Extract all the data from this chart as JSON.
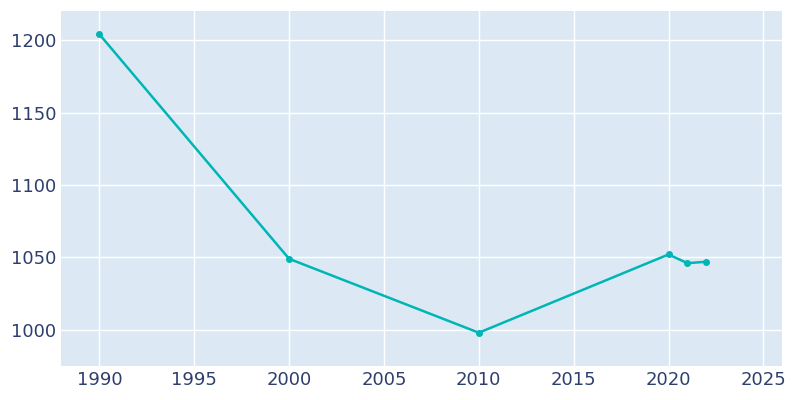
{
  "years": [
    1990,
    2000,
    2010,
    2020,
    2021,
    2022
  ],
  "population": [
    1204,
    1049,
    998,
    1052,
    1046,
    1047
  ],
  "line_color": "#00B5B5",
  "marker": "o",
  "marker_size": 4,
  "line_width": 1.8,
  "axes_background_color": "#dce9f5",
  "figure_background_color": "#ffffff",
  "grid_color": "#ffffff",
  "xlim": [
    1988,
    2026
  ],
  "ylim": [
    975,
    1220
  ],
  "xticks": [
    1990,
    1995,
    2000,
    2005,
    2010,
    2015,
    2020,
    2025
  ],
  "yticks": [
    1000,
    1050,
    1100,
    1150,
    1200
  ],
  "tick_color": "#2e3f6e",
  "tick_fontsize": 13
}
